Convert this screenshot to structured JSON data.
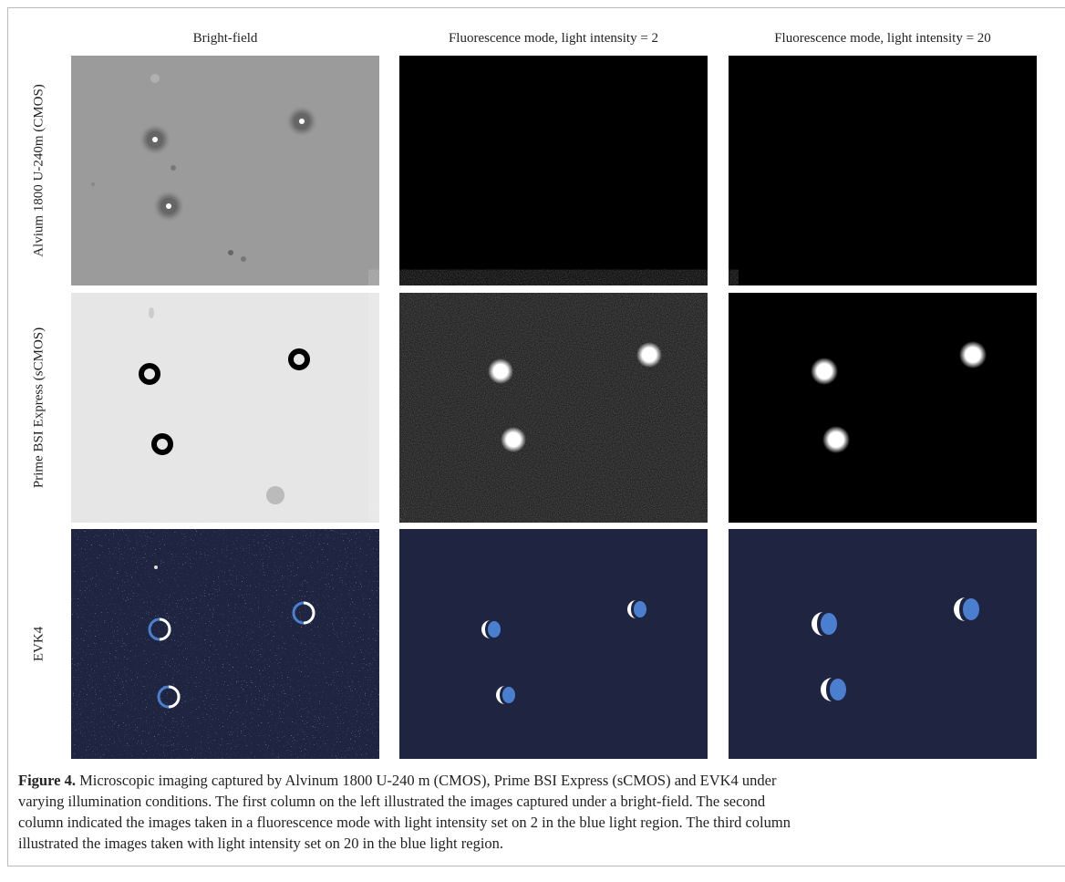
{
  "columns": [
    "Bright-field",
    "Fluorescence mode, light intensity  = 2",
    "Fluorescence mode, light intensity  = 20"
  ],
  "rows": [
    "Alvium 1800 U-240m (CMOS)",
    "Prime BSI Express (sCMOS)",
    "EVK4"
  ],
  "caption": {
    "label": "Figure 4.",
    "lines": [
      " Microscopic imaging captured by Alvinum 1800 U-240 m (CMOS), Prime BSI Express (sCMOS) and EVK4 under",
      "varying illumination conditions. The first column on the left illustrated the images captured under a bright-field. The second",
      "column indicated the images taken in a fluorescence mode with light intensity set on 2 in the blue light region. The third column",
      "illustrated the images taken with light intensity set on 20 in the blue light region."
    ]
  }
}
